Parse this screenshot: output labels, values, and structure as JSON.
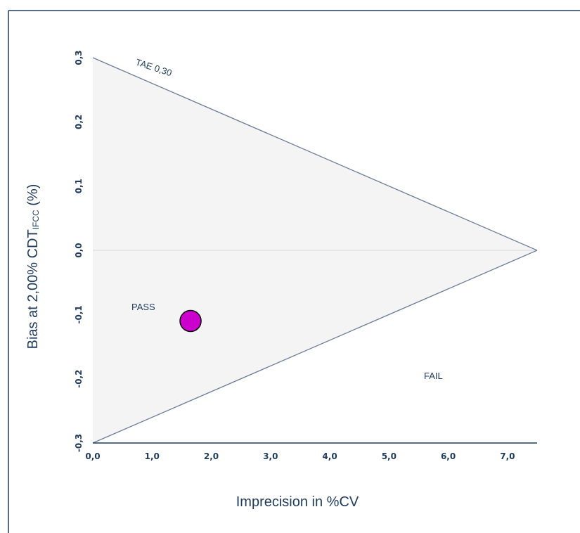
{
  "chart_data": {
    "type": "scatter",
    "xlabel": "Imprecision in %CV",
    "ylabel_main": "Bias at 2,00% CDT",
    "ylabel_sub": "IFCC",
    "ylabel_suffix": " (%)",
    "x_ticks": [
      "0,0",
      "1,0",
      "2,0",
      "3,0",
      "4,0",
      "5,0",
      "6,0",
      "7,0"
    ],
    "y_ticks": [
      "-0,3",
      "-0,2",
      "-0,1",
      "0,0",
      "0,1",
      "0,2",
      "0,3"
    ],
    "xlim": [
      0,
      7.5
    ],
    "ylim": [
      -0.3,
      0.3
    ],
    "tae_label": "TAE 0,30",
    "tae": 0.3,
    "tae_apex_x": 7.5,
    "pass_label": "PASS",
    "fail_label": "FAIL",
    "points": [
      {
        "x": 1.65,
        "y": -0.11
      }
    ],
    "colors": {
      "point": "#cc00cc",
      "region_fill": "#f4f4f4",
      "tae_line": "#6b7f99",
      "axis": "#1f3b5c",
      "zero_line": "#d9d9d9"
    }
  }
}
